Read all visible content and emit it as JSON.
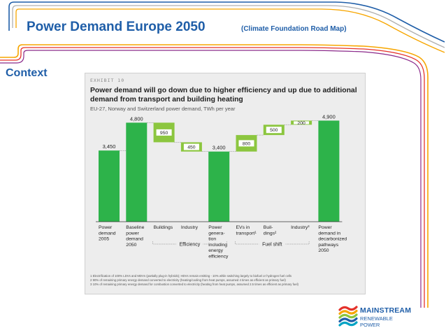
{
  "slide": {
    "title": "Power Demand Europe 2050",
    "subtitle": "(Climate Foundation Road Map)",
    "section": "Context"
  },
  "exhibit": {
    "label": "EXHIBIT 10",
    "title": "Power demand will go down due to higher efficiency and up due to additional demand from transport and building heating",
    "subtitle": "EU-27, Norway and Switzerland power demand, TWh per year",
    "footnotes": [
      "1 Electrification of 100% LDVs and MDVs (partially plug-in hybrids); HDVs remain emitting - 10% while switching largely to biofuel or hydrogen fuel cells",
      "2 90% of remaining primary energy demand converted to electricity (heating/cooling from heat pumps, assumed 4 times as efficient as primary fuel)",
      "3 10% of remaining primary energy demand for combustion converted to electricity (heating from heat pumps, assumed 2.5 times as efficient as primary fuel)"
    ]
  },
  "chart_data": {
    "type": "bar",
    "subtype": "waterfall",
    "title": "Power demand will go down due to higher efficiency and up due to additional demand from transport and building heating",
    "subtitle": "EU-27, Norway and Switzerland power demand, TWh per year",
    "xlabel": "",
    "ylabel": "",
    "ylim": [
      0,
      5000
    ],
    "grid": false,
    "colors": {
      "total": "#2db34a",
      "step": "#8cc63f",
      "label_fill": "#ffffff"
    },
    "bars": [
      {
        "category": "Power demand 2005",
        "label_lines": [
          "Power",
          "demand",
          "2005"
        ],
        "kind": "total",
        "start": 0,
        "end": 3450,
        "value_label": "3,450"
      },
      {
        "category": "Baseline power demand 2050",
        "label_lines": [
          "Baseline",
          "power",
          "demand",
          "2050"
        ],
        "kind": "total",
        "start": 0,
        "end": 4800,
        "value_label": "4,800"
      },
      {
        "category": "Buildings",
        "label_lines": [
          "Buildings"
        ],
        "kind": "decrease",
        "start": 4800,
        "end": 3850,
        "value_label": "950"
      },
      {
        "category": "Industry",
        "label_lines": [
          "Industry"
        ],
        "kind": "decrease",
        "start": 3850,
        "end": 3400,
        "value_label": "450"
      },
      {
        "category": "Power generation including energy efficiency",
        "label_lines": [
          "Power",
          "genera-",
          "tion",
          "including",
          "energy",
          "efficiency"
        ],
        "kind": "total",
        "start": 0,
        "end": 3400,
        "value_label": "3,400"
      },
      {
        "category": "EVs in transport¹",
        "label_lines": [
          "EVs in",
          "transport¹"
        ],
        "kind": "increase",
        "start": 3400,
        "end": 4200,
        "value_label": "800"
      },
      {
        "category": "Buildings²",
        "label_lines": [
          "Buil-",
          "dings²"
        ],
        "kind": "increase",
        "start": 4200,
        "end": 4700,
        "value_label": "500"
      },
      {
        "category": "Industry³",
        "label_lines": [
          "Industry³"
        ],
        "kind": "increase",
        "start": 4700,
        "end": 4900,
        "value_label": "200"
      },
      {
        "category": "Power demand in decarbonized pathways 2050",
        "label_lines": [
          "Power",
          "demand in",
          "decarbonized",
          "pathways",
          "2050"
        ],
        "kind": "total",
        "start": 0,
        "end": 4900,
        "value_label": "4,900"
      }
    ],
    "groups": [
      {
        "label": "Efficiency",
        "from_bar": 2,
        "to_bar": 4
      },
      {
        "label": "Fuel shift",
        "from_bar": 5,
        "to_bar": 7
      }
    ]
  },
  "logo": {
    "line1": "MAINSTREAM",
    "line2": "RENEWABLE",
    "line3": "POWER",
    "colors": [
      "#e4322b",
      "#f7a600",
      "#8cc63f",
      "#1f5ea8",
      "#00a3c4"
    ]
  }
}
